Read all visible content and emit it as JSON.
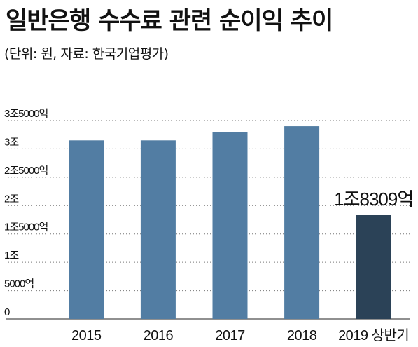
{
  "header": {
    "title": "일반은행 수수료 관련 순이익 추이",
    "subtitle": "(단위: 원, 자료: 한국기업평가)"
  },
  "colors": {
    "bar": "#527da3",
    "bar_highlight": "#2b4257",
    "grid": "#777777"
  },
  "chart_data": {
    "type": "bar",
    "title": "일반은행 수수료 관련 순이익 추이",
    "unit": "원",
    "source": "한국기업평가",
    "categories": [
      "2015",
      "2016",
      "2017",
      "2018",
      "2019 상반기"
    ],
    "values": [
      31500,
      31500,
      33000,
      34000,
      18309
    ],
    "ylim": [
      0,
      35000
    ],
    "yticks": [
      {
        "value": 35000,
        "label": "3조5000억"
      },
      {
        "value": 30000,
        "label": "3조"
      },
      {
        "value": 25000,
        "label": "2조5000억"
      },
      {
        "value": 20000,
        "label": "2조"
      },
      {
        "value": 15000,
        "label": "1조5000억"
      },
      {
        "value": 10000,
        "label": "1조"
      },
      {
        "value": 5000,
        "label": "5000억"
      },
      {
        "value": 0,
        "label": "0"
      }
    ],
    "data_labels": [
      {
        "index": 4,
        "label": "1조8309억"
      }
    ],
    "highlight_index": 4,
    "grid": true,
    "legend": "none"
  }
}
